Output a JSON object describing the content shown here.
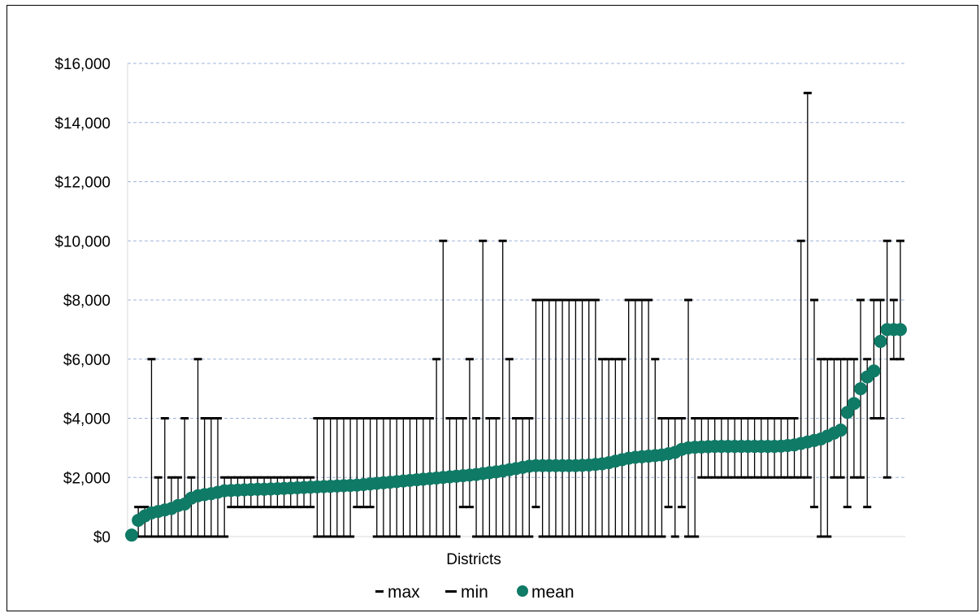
{
  "chart_data": {
    "type": "scatter",
    "xlabel": "Districts",
    "ylabel": "",
    "ylim": [
      0,
      16000
    ],
    "yticks": [
      0,
      2000,
      4000,
      6000,
      8000,
      10000,
      12000,
      14000,
      16000
    ],
    "ytick_labels": [
      "$0",
      "$2,000",
      "$4,000",
      "$6,000",
      "$8,000",
      "$10,000",
      "$12,000",
      "$14,000",
      "$16,000"
    ],
    "grid": true,
    "legend": "bottom",
    "legend_entries": [
      "max",
      "min",
      "mean"
    ],
    "colors": {
      "mean": "#0f7a66",
      "bars": "#000000",
      "grid": "#9fb4dc"
    },
    "series": [
      {
        "name": "max",
        "values": [
          0,
          1000,
          1000,
          6000,
          2000,
          4000,
          2000,
          2000,
          4000,
          2000,
          6000,
          4000,
          4000,
          4000,
          2000,
          2000,
          2000,
          2000,
          2000,
          2000,
          2000,
          2000,
          2000,
          2000,
          2000,
          2000,
          2000,
          2000,
          4000,
          4000,
          4000,
          4000,
          4000,
          4000,
          4000,
          4000,
          4000,
          4000,
          4000,
          4000,
          4000,
          4000,
          4000,
          4000,
          4000,
          4000,
          6000,
          10000,
          4000,
          4000,
          4000,
          6000,
          4000,
          10000,
          4000,
          4000,
          10000,
          6000,
          4000,
          4000,
          4000,
          8000,
          8000,
          8000,
          8000,
          8000,
          8000,
          8000,
          8000,
          8000,
          8000,
          6000,
          6000,
          6000,
          6000,
          8000,
          8000,
          8000,
          8000,
          6000,
          4000,
          4000,
          4000,
          4000,
          8000,
          4000,
          4000,
          4000,
          4000,
          4000,
          4000,
          4000,
          4000,
          4000,
          4000,
          4000,
          4000,
          4000,
          4000,
          4000,
          4000,
          10000,
          15000,
          8000,
          6000,
          6000,
          6000,
          6000,
          6000,
          6000,
          8000,
          6000,
          8000,
          8000,
          10000,
          8000,
          10000
        ]
      },
      {
        "name": "min",
        "values": [
          0,
          0,
          0,
          0,
          0,
          0,
          0,
          0,
          0,
          0,
          0,
          0,
          0,
          0,
          0,
          1000,
          1000,
          1000,
          1000,
          1000,
          1000,
          1000,
          1000,
          1000,
          1000,
          1000,
          1000,
          1000,
          0,
          0,
          0,
          0,
          0,
          0,
          1000,
          1000,
          1000,
          0,
          0,
          0,
          0,
          0,
          0,
          0,
          0,
          0,
          0,
          0,
          0,
          0,
          1000,
          1000,
          0,
          0,
          0,
          0,
          0,
          0,
          0,
          0,
          0,
          1000,
          0,
          0,
          0,
          0,
          0,
          0,
          0,
          0,
          0,
          0,
          0,
          0,
          0,
          0,
          0,
          0,
          0,
          0,
          0,
          1000,
          0,
          1000,
          0,
          0,
          2000,
          2000,
          2000,
          2000,
          2000,
          2000,
          2000,
          2000,
          2000,
          2000,
          2000,
          2000,
          2000,
          2000,
          2000,
          2000,
          2000,
          1000,
          0,
          0,
          2000,
          2000,
          1000,
          2000,
          2000,
          1000,
          4000,
          4000,
          2000,
          6000,
          6000,
          4000
        ]
      },
      {
        "name": "mean",
        "values": [
          50,
          550,
          700,
          800,
          850,
          900,
          950,
          1050,
          1100,
          1300,
          1380,
          1420,
          1450,
          1500,
          1550,
          1560,
          1570,
          1580,
          1590,
          1600,
          1600,
          1610,
          1620,
          1630,
          1640,
          1650,
          1660,
          1670,
          1680,
          1690,
          1700,
          1710,
          1720,
          1730,
          1740,
          1760,
          1780,
          1800,
          1820,
          1840,
          1860,
          1880,
          1900,
          1920,
          1940,
          1960,
          1980,
          2000,
          2020,
          2040,
          2060,
          2080,
          2100,
          2130,
          2160,
          2190,
          2220,
          2260,
          2300,
          2340,
          2380,
          2400,
          2400,
          2400,
          2400,
          2400,
          2400,
          2400,
          2410,
          2420,
          2440,
          2460,
          2500,
          2550,
          2600,
          2650,
          2680,
          2700,
          2720,
          2740,
          2760,
          2800,
          2850,
          2950,
          3000,
          3020,
          3030,
          3040,
          3050,
          3050,
          3050,
          3050,
          3050,
          3050,
          3050,
          3050,
          3050,
          3050,
          3060,
          3080,
          3100,
          3150,
          3200,
          3250,
          3300,
          3400,
          3500,
          3600,
          4200,
          4500,
          5000,
          5400,
          5600,
          6600,
          7000,
          7000,
          7000
        ]
      }
    ]
  }
}
